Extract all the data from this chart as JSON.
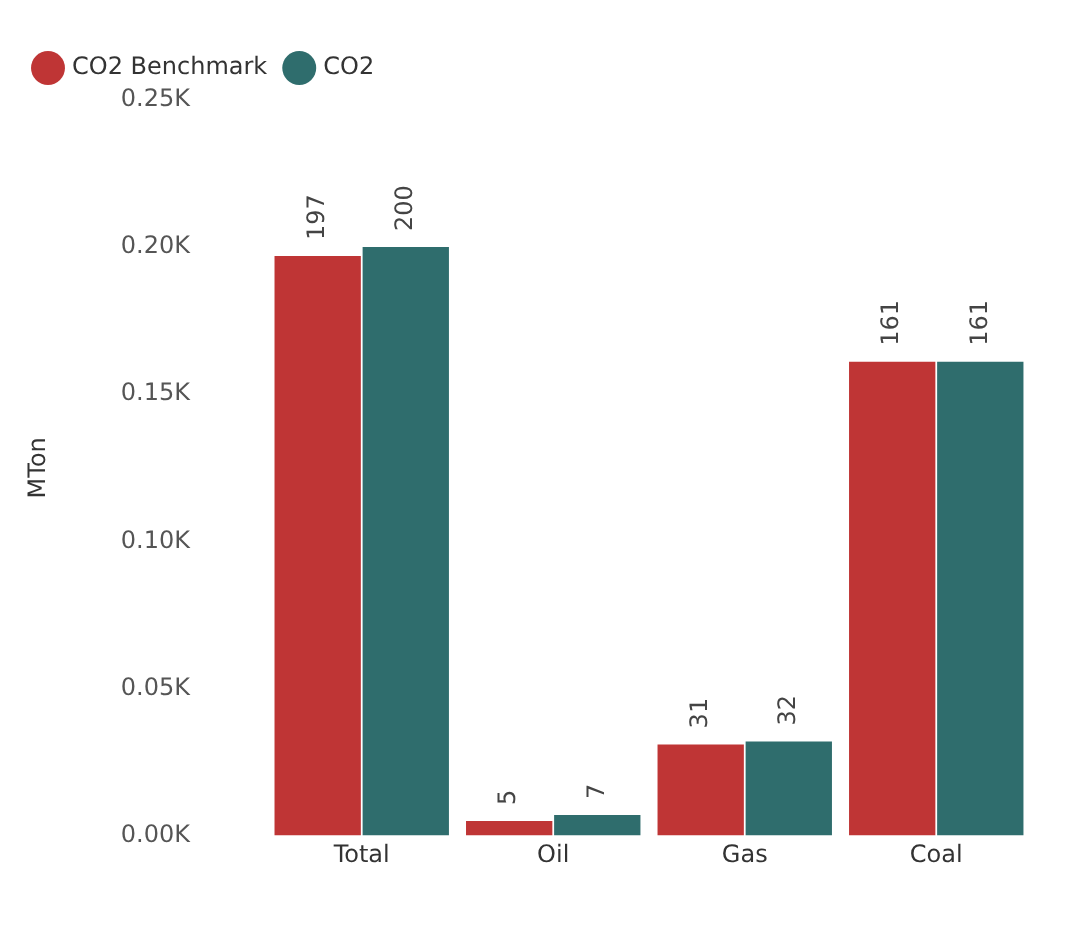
{
  "chart_data": {
    "type": "bar",
    "ylabel": "MTon",
    "categories": [
      "Total",
      "Oil",
      "Gas",
      "Coal"
    ],
    "series": [
      {
        "name": "CO2 Benchmark",
        "color": "#bf3535",
        "values": [
          197,
          5,
          31,
          161
        ]
      },
      {
        "name": "CO2",
        "color": "#2f6d6d",
        "values": [
          200,
          7,
          32,
          161
        ]
      }
    ],
    "ylim": [
      0,
      250
    ],
    "yticks": [
      {
        "value": 0,
        "label": "0.00K"
      },
      {
        "value": 50,
        "label": "0.05K"
      },
      {
        "value": 100,
        "label": "0.10K"
      },
      {
        "value": 150,
        "label": "0.15K"
      },
      {
        "value": 200,
        "label": "0.20K"
      },
      {
        "value": 250,
        "label": "0.25K"
      }
    ],
    "data_labels": true,
    "legend": "top left",
    "grid": false
  }
}
